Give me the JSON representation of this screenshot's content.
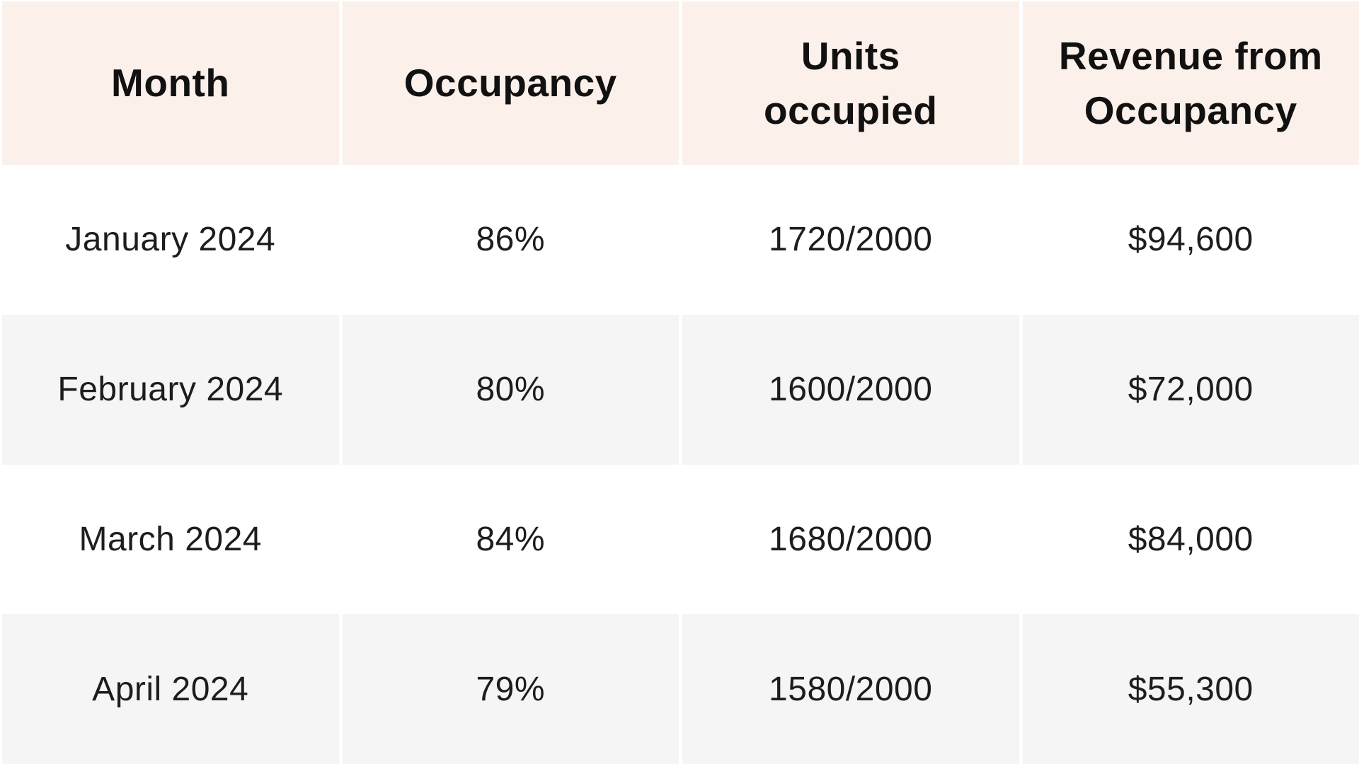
{
  "chart_data": {
    "type": "table",
    "columns": [
      "Month",
      "Occupancy",
      "Units occupied",
      "Revenue from Occupancy"
    ],
    "rows": [
      [
        "January 2024",
        "86%",
        "1720/2000",
        "$94,600"
      ],
      [
        "February 2024",
        "80%",
        "1600/2000",
        "$72,000"
      ],
      [
        "March 2024",
        "84%",
        "1680/2000",
        "$84,000"
      ],
      [
        "April 2024",
        "79%",
        "1580/2000",
        "$55,300"
      ]
    ],
    "layout": {
      "header_row": true,
      "zebra_striping": "rows 2 and 4 shaded",
      "column_count": 4,
      "row_count": 4
    }
  },
  "colors": {
    "header_bg": "#fbf0ea",
    "header_text": "#111111",
    "row_bg": "#ffffff",
    "row_alt_bg": "#f5f5f5",
    "text": "#1d1d1f",
    "gutter": "#ffffff"
  }
}
